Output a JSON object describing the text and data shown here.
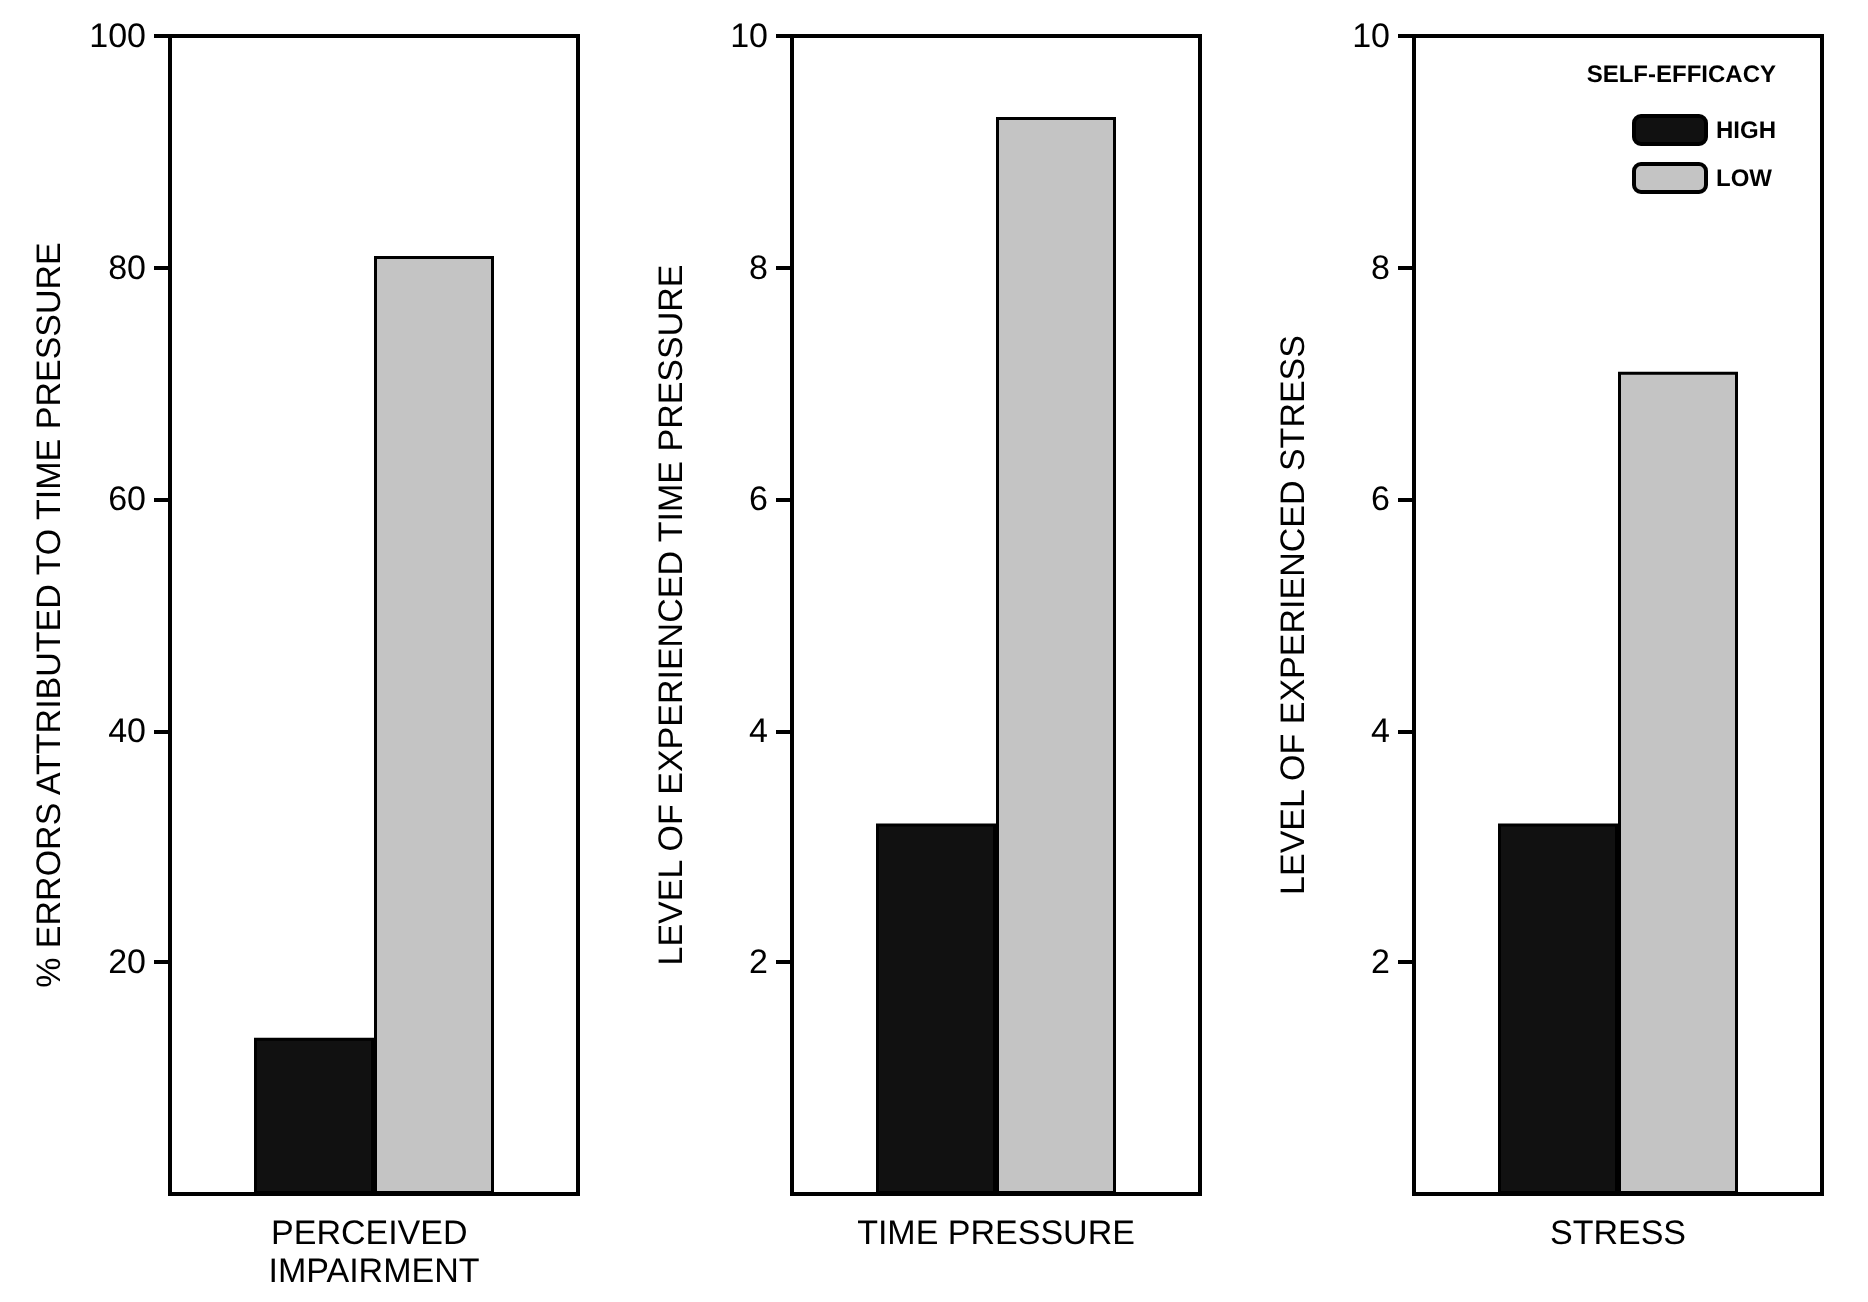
{
  "chart_data": [
    {
      "type": "bar",
      "categories": [
        "PERCEIVED IMPAIRMENT"
      ],
      "ylabel": "% ERRORS ATTRIBUTED TO TIME PRESSURE",
      "ylim": [
        0,
        100
      ],
      "yticks": [
        20,
        40,
        60,
        80,
        100
      ],
      "grid": false,
      "legend": false,
      "series": [
        {
          "color": "#111111",
          "values": [
            13.5
          ]
        },
        {
          "color": "#c4c4c4",
          "values": [
            81
          ]
        }
      ]
    },
    {
      "type": "bar",
      "categories": [
        "TIME PRESSURE"
      ],
      "ylabel": "LEVEL OF EXPERIENCED TIME PRESSURE",
      "ylim": [
        0,
        10
      ],
      "yticks": [
        2,
        4,
        6,
        8,
        10
      ],
      "grid": false,
      "legend": false,
      "series": [
        {
          "color": "#111111",
          "values": [
            3.2
          ]
        },
        {
          "color": "#c4c4c4",
          "values": [
            9.3
          ]
        }
      ]
    },
    {
      "type": "bar",
      "categories": [
        "STRESS"
      ],
      "ylabel": "LEVEL OF EXPERIENCED STRESS",
      "ylim": [
        0,
        10
      ],
      "yticks": [
        2,
        4,
        6,
        8,
        10
      ],
      "grid": false,
      "legend": "top right",
      "legend_title": "SELF-EFFICACY",
      "series": [
        {
          "name": "HIGH",
          "color": "#111111",
          "values": [
            3.2
          ]
        },
        {
          "name": "LOW",
          "color": "#c4c4c4",
          "values": [
            7.1
          ]
        }
      ]
    }
  ]
}
